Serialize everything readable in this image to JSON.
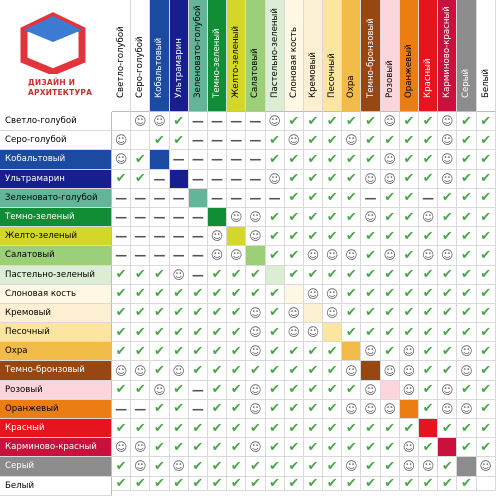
{
  "logo": {
    "line1": "ДИЗАЙН И",
    "line2": "АРХИТЕКТУРА",
    "color": "#e3343c"
  },
  "colors": [
    {
      "name": "Светло-голубой",
      "bg": "#ffffff",
      "fg": "#000000"
    },
    {
      "name": "Серо-голубой",
      "bg": "#ffffff",
      "fg": "#000000"
    },
    {
      "name": "Кобальтовый",
      "bg": "#1c4aa0",
      "fg": "#ffffff"
    },
    {
      "name": "Ультрамарин",
      "bg": "#171f8f",
      "fg": "#ffffff"
    },
    {
      "name": "Зеленовато-голубой",
      "bg": "#63b59a",
      "fg": "#000000"
    },
    {
      "name": "Темно-зеленый",
      "bg": "#108d35",
      "fg": "#ffffff"
    },
    {
      "name": "Желто-зеленый",
      "bg": "#d4d62a",
      "fg": "#000000"
    },
    {
      "name": "Салатовый",
      "bg": "#9ccf7a",
      "fg": "#000000"
    },
    {
      "name": "Пастельно-зеленый",
      "bg": "#dbeed4",
      "fg": "#000000"
    },
    {
      "name": "Слоновая кость",
      "bg": "#fdf7e3",
      "fg": "#000000"
    },
    {
      "name": "Кремовый",
      "bg": "#fcefd2",
      "fg": "#000000"
    },
    {
      "name": "Песочный",
      "bg": "#fbe59f",
      "fg": "#000000"
    },
    {
      "name": "Охра",
      "bg": "#f1bb47",
      "fg": "#000000"
    },
    {
      "name": "Темно-бронзовый",
      "bg": "#974712",
      "fg": "#ffffff"
    },
    {
      "name": "Розовый",
      "bg": "#fad6dc",
      "fg": "#000000"
    },
    {
      "name": "Оранжевый",
      "bg": "#ec7d13",
      "fg": "#000000"
    },
    {
      "name": "Красный",
      "bg": "#e5141f",
      "fg": "#ffffff"
    },
    {
      "name": "Карминово-красный",
      "bg": "#c9113d",
      "fg": "#ffffff"
    },
    {
      "name": "Серый",
      "bg": "#8c8c8c",
      "fg": "#ffffff"
    },
    {
      "name": "Белый",
      "bg": "#ffffff",
      "fg": "#000000"
    }
  ],
  "symbols": {
    "v": "✔",
    "m": "☺",
    "x": "—"
  },
  "symbol_colors": {
    "v": "#4aa54a",
    "m": "#666666",
    "x": "#555555"
  },
  "matrix": [
    "_mmvxxxxmvvvvvmvvmvv",
    "m_vvxxxxvmvvmvvvvmvv",
    "mv_xxxxxvvvvvvmvvmvv",
    "vvx_xxxxmvvvvmmvvmvv",
    "xxxx_xxxxvvvvxvvxvvv",
    "xxxxx_mmvvvvvmvvmvvv",
    "xxxxxm_mvvvvvvvvvvvv",
    "xxxxxmm_vvmmmvmvmmvv",
    "vvvmxvvv_vvvvvvvvvvv",
    "vvvvvvvvv_mmvvvvvvvv",
    "vvvvvvvmvm_mvvvvvvvv",
    "vvvvvvvmvmm_vvvvvvvv",
    "vvvvvvvmvvvv_mvmvvmv",
    "mmvmvvvvvvvvm_mmvvmv",
    "vvmvxvvmvvvvvm_mvmvv",
    "xxvvxvvmvvvvmmm_vmmv",
    "vvvvvvvvvvvvvvvv_vvv",
    "mmvvvvvmvvvvvvvmv_vv",
    "vmvmvvvvvvvvmvvmmv_m",
    "vvvvvvvvvvvvvvvvvvv_"
  ]
}
